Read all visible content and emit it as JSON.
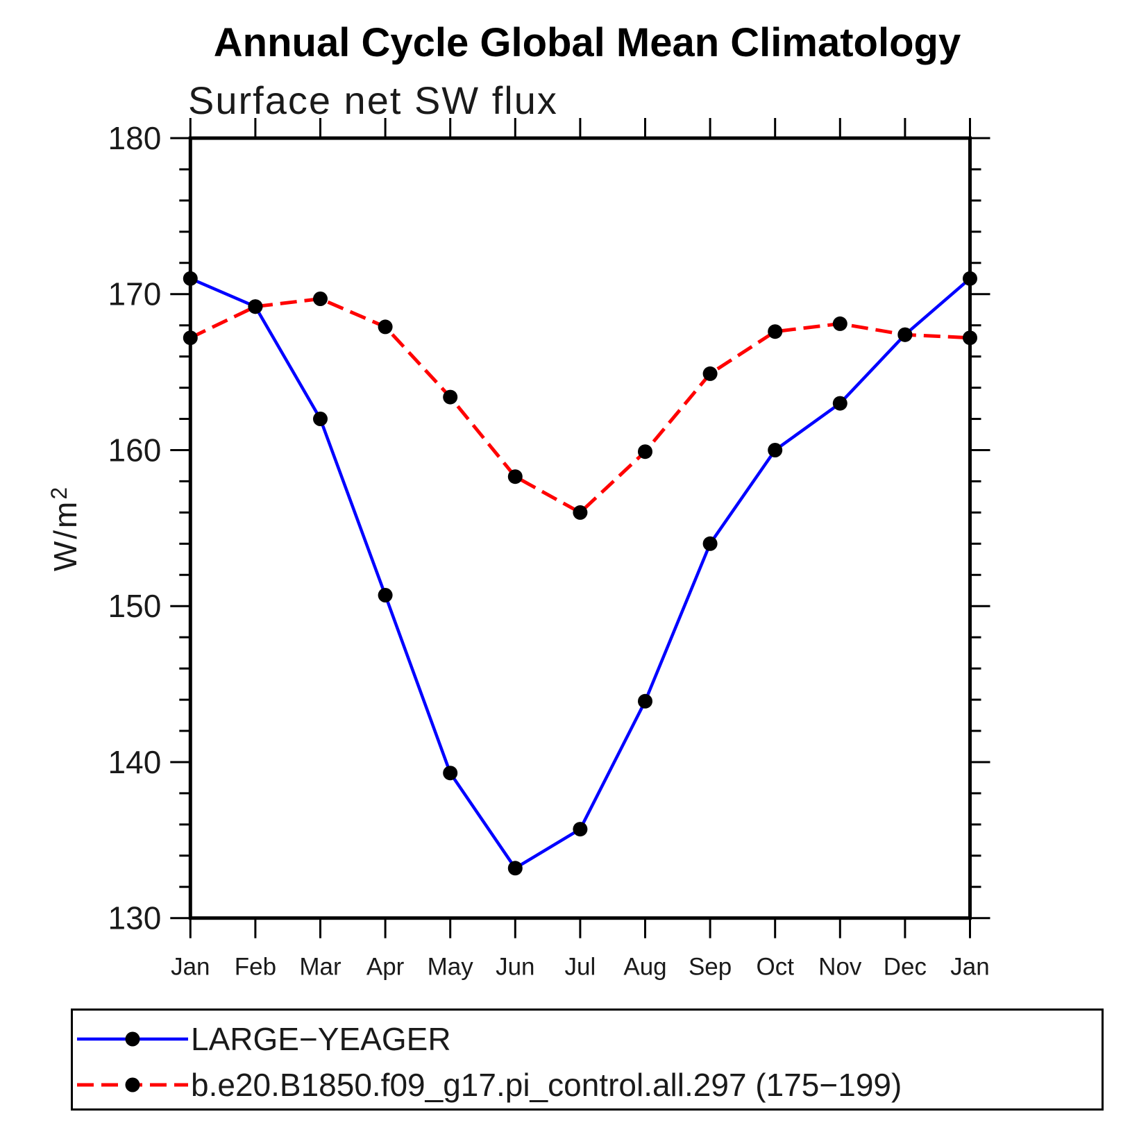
{
  "page": {
    "background": "#ffffff"
  },
  "chart_data": {
    "type": "line",
    "title": "Annual Cycle Global Mean Climatology",
    "subtitle": "Surface net SW flux",
    "ylabel_base": "W/m",
    "ylabel_exponent": "2",
    "categories": [
      "Jan",
      "Feb",
      "Mar",
      "Apr",
      "May",
      "Jun",
      "Jul",
      "Aug",
      "Sep",
      "Oct",
      "Nov",
      "Dec",
      "Jan"
    ],
    "ylim": [
      130,
      180
    ],
    "ytick_major_step": 10,
    "ytick_minor_step": 2,
    "grid": "off",
    "legend_position": "bottom-left-box",
    "axis_color": "#000000",
    "marker_color": "#000000",
    "series": [
      {
        "name": "LARGE−YEAGER",
        "color": "#0000ff",
        "style": "solid",
        "marker": "filled-circle",
        "values": [
          171.0,
          169.2,
          162.0,
          150.7,
          139.3,
          133.2,
          135.7,
          143.9,
          154.0,
          160.0,
          163.0,
          167.4,
          171.0
        ]
      },
      {
        "name": "b.e20.B1850.f09_g17.pi_control.all.297 (175−199)",
        "color": "#ff0000",
        "style": "dashed",
        "marker": "filled-circle",
        "values": [
          167.2,
          169.2,
          169.7,
          167.9,
          163.4,
          158.3,
          156.0,
          159.9,
          164.9,
          167.6,
          168.1,
          167.4,
          167.2
        ]
      }
    ]
  }
}
